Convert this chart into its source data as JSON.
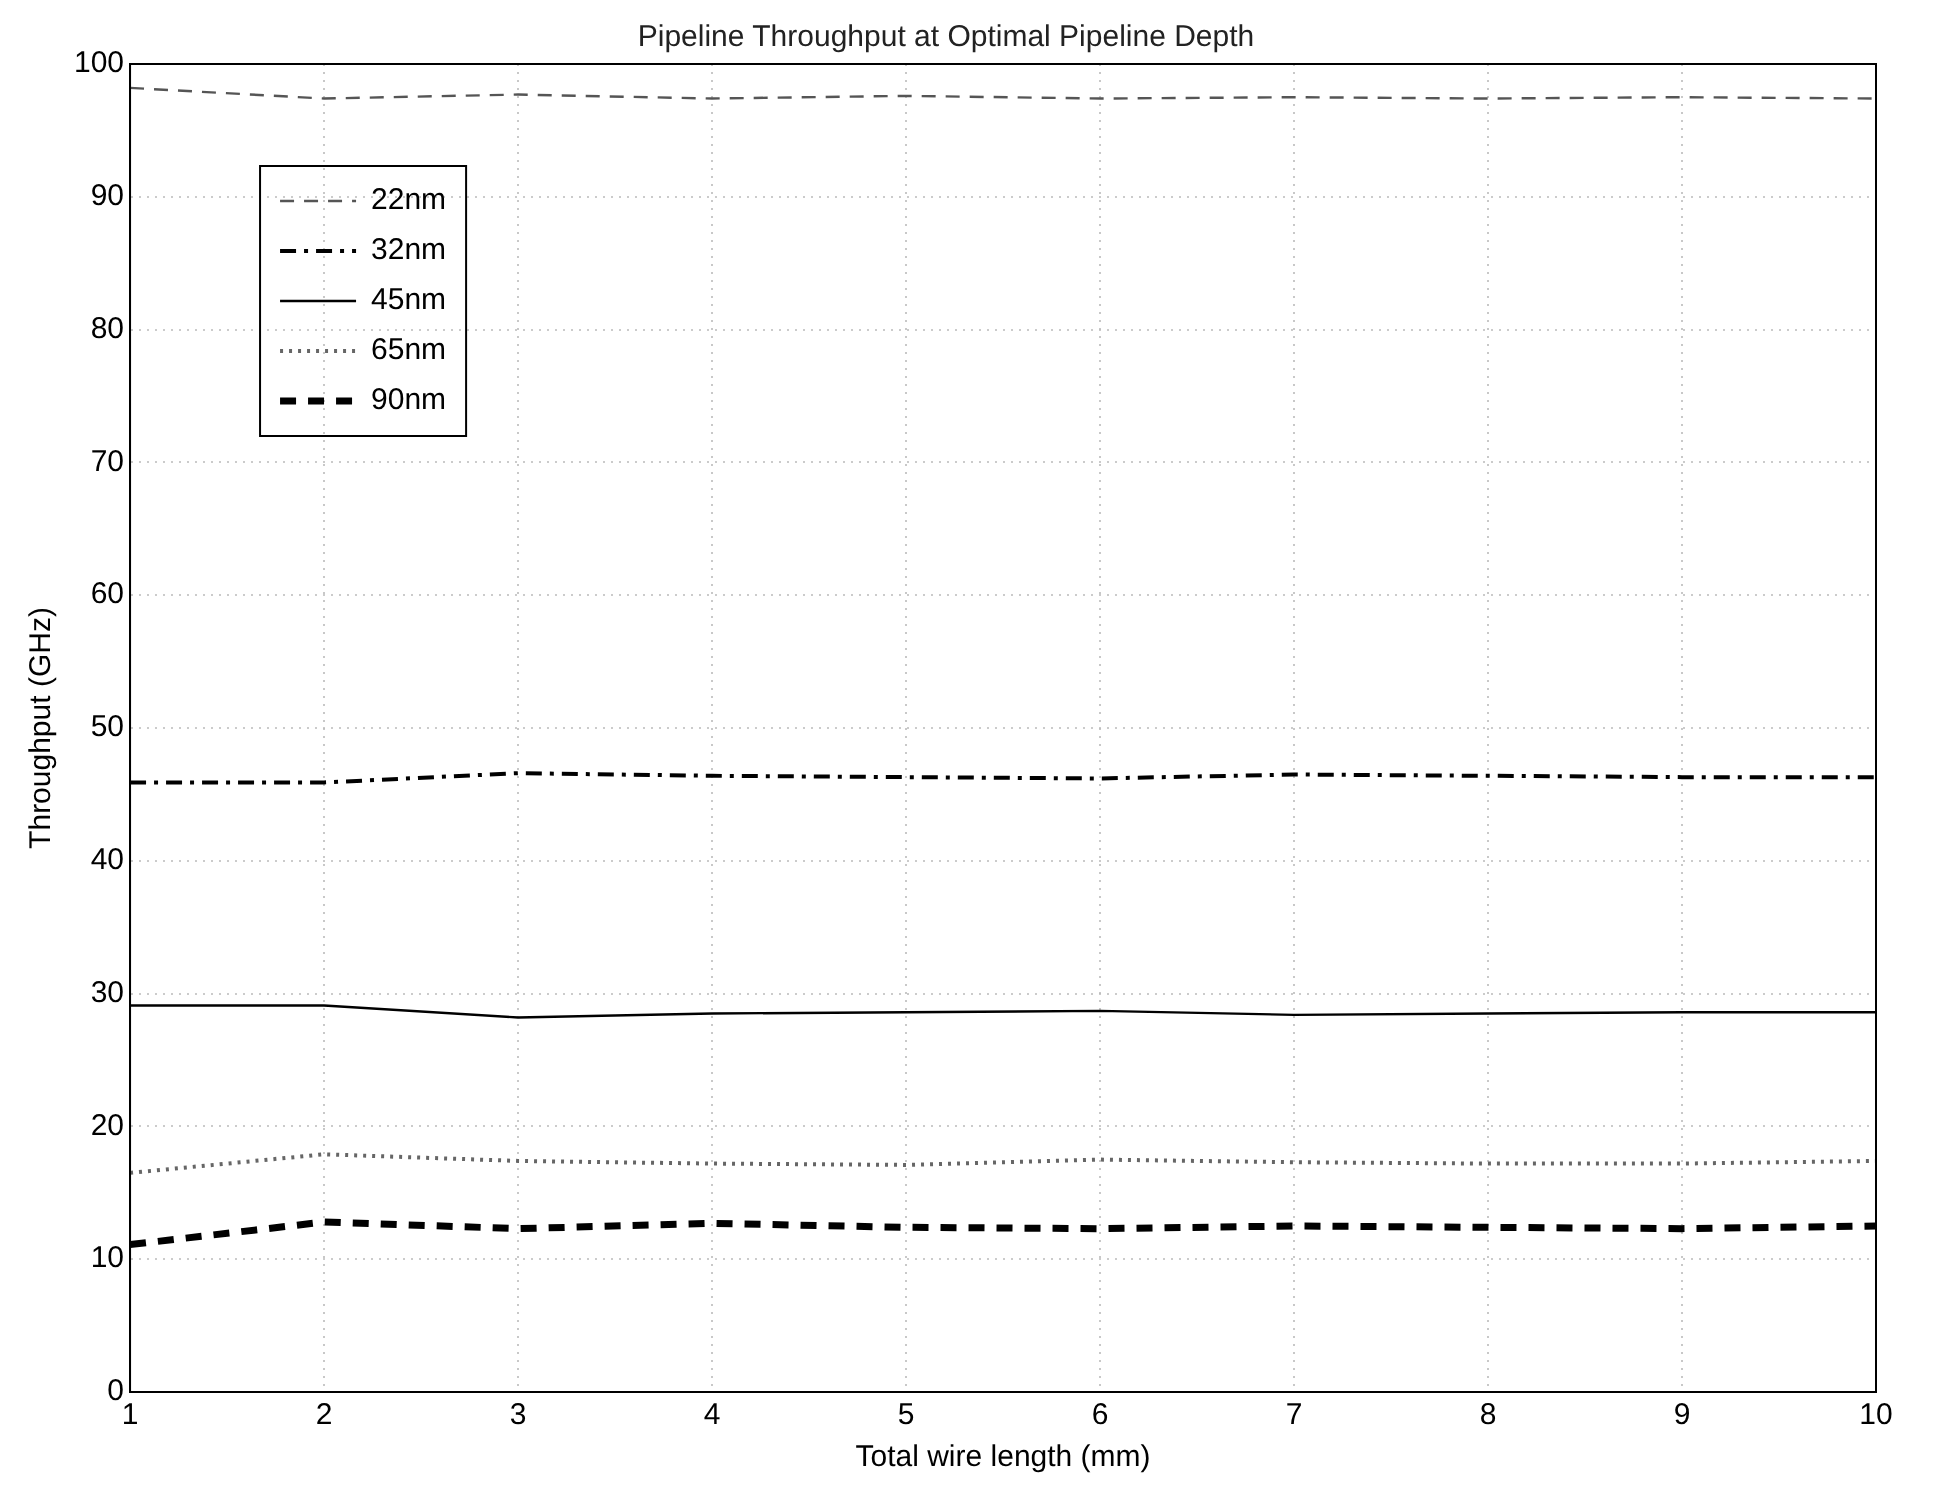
{
  "chart_data": {
    "type": "line",
    "title": "Pipeline Throughput at Optimal Pipeline Depth",
    "xlabel": "Total wire length (mm)",
    "ylabel": "Throughput (GHz)",
    "x": [
      1,
      2,
      3,
      4,
      5,
      6,
      7,
      8,
      9,
      10
    ],
    "xlim": [
      1,
      10
    ],
    "xticks": [
      1,
      2,
      3,
      4,
      5,
      6,
      7,
      8,
      9,
      10
    ],
    "ylim": [
      0,
      100
    ],
    "yticks": [
      0,
      10,
      20,
      30,
      40,
      50,
      60,
      70,
      80,
      90,
      100
    ],
    "grid": true,
    "legend": "top left",
    "marker": "none",
    "series": [
      {
        "name": "22nm",
        "color": "#555555",
        "line_style": "dashed",
        "values": [
          98.2,
          97.4,
          97.7,
          97.4,
          97.6,
          97.4,
          97.5,
          97.4,
          97.5,
          97.4
        ]
      },
      {
        "name": "32nm",
        "color": "#000000",
        "line_style": "dashdot",
        "values": [
          45.9,
          45.9,
          46.6,
          46.4,
          46.3,
          46.2,
          46.5,
          46.4,
          46.3,
          46.3
        ]
      },
      {
        "name": "45nm",
        "color": "#000000",
        "line_style": "solid",
        "values": [
          29.1,
          29.1,
          28.2,
          28.5,
          28.6,
          28.7,
          28.4,
          28.5,
          28.6,
          28.6
        ]
      },
      {
        "name": "65nm",
        "color": "#666666",
        "line_style": "dotted",
        "values": [
          16.5,
          17.9,
          17.4,
          17.2,
          17.1,
          17.5,
          17.3,
          17.2,
          17.2,
          17.4
        ]
      },
      {
        "name": "90nm",
        "color": "#000000",
        "line_style": "thickdashed",
        "values": [
          11.1,
          12.8,
          12.3,
          12.7,
          12.4,
          12.3,
          12.5,
          12.4,
          12.3,
          12.5
        ]
      }
    ]
  }
}
